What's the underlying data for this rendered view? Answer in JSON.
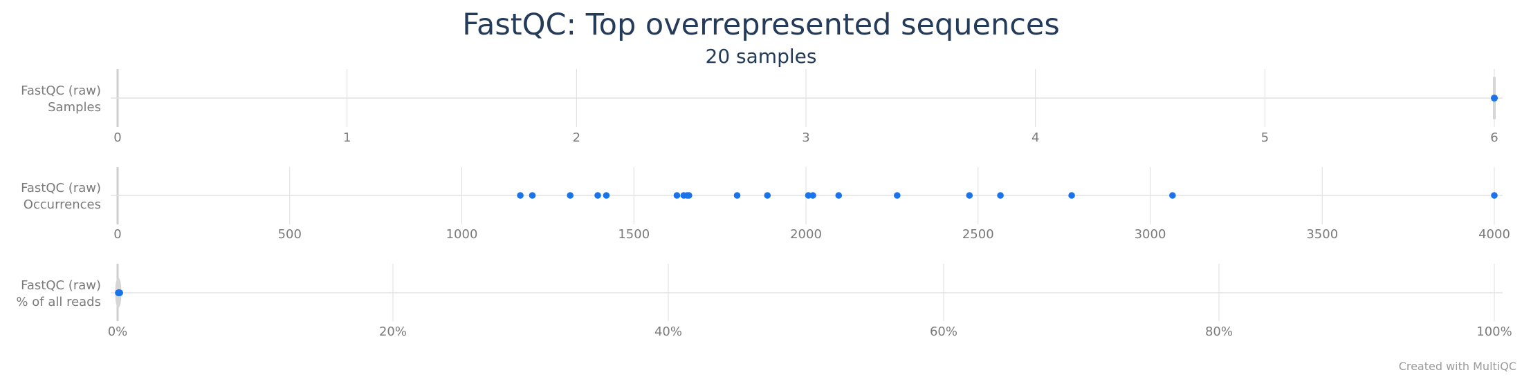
{
  "title": "FastQC: Top overrepresented sequences",
  "subtitle": "20 samples",
  "credit": "Created with MultiQC",
  "colors": {
    "point": "#1a73e8",
    "violin": "#d6d6d6",
    "grid": "#dddddd",
    "tick": "#7a7a7a",
    "title": "#243b5a"
  },
  "chart_data": [
    {
      "type": "violin",
      "row_label": [
        "FastQC (raw)",
        "Samples"
      ],
      "xlim": [
        0,
        6
      ],
      "ticks": [
        0,
        1,
        2,
        3,
        4,
        5,
        6
      ],
      "tick_labels": [
        "0",
        "1",
        "2",
        "3",
        "4",
        "5",
        "6"
      ],
      "grid": true,
      "values": [
        6,
        6,
        6,
        6,
        6,
        6,
        6,
        6,
        6,
        6,
        6,
        6,
        6,
        6,
        6,
        6,
        6,
        6,
        6,
        6
      ]
    },
    {
      "type": "violin",
      "row_label": [
        "FastQC (raw)",
        "Occurrences"
      ],
      "xlim": [
        0,
        4000
      ],
      "ticks": [
        0,
        500,
        1000,
        1500,
        2000,
        2500,
        3000,
        3500,
        4000
      ],
      "tick_labels": [
        "0",
        "500",
        "1000",
        "1500",
        "2000",
        "2500",
        "3000",
        "3500",
        "4000"
      ],
      "grid": true,
      "values": [
        1170,
        1205,
        1315,
        1395,
        1420,
        1625,
        1645,
        1655,
        1660,
        1800,
        1888,
        2007,
        2020,
        2095,
        2265,
        2475,
        2565,
        2772,
        3065,
        4000
      ]
    },
    {
      "type": "violin",
      "row_label": [
        "FastQC (raw)",
        "% of all reads"
      ],
      "xlim": [
        0,
        100
      ],
      "ticks": [
        0,
        20,
        40,
        60,
        80,
        100
      ],
      "tick_labels": [
        "0%",
        "20%",
        "40%",
        "60%",
        "80%",
        "100%"
      ],
      "grid": true,
      "values": [
        0.05,
        0.06,
        0.06,
        0.07,
        0.07,
        0.08,
        0.08,
        0.08,
        0.09,
        0.09,
        0.1,
        0.1,
        0.11,
        0.11,
        0.12,
        0.12,
        0.13,
        0.14,
        0.15,
        0.16
      ]
    }
  ]
}
